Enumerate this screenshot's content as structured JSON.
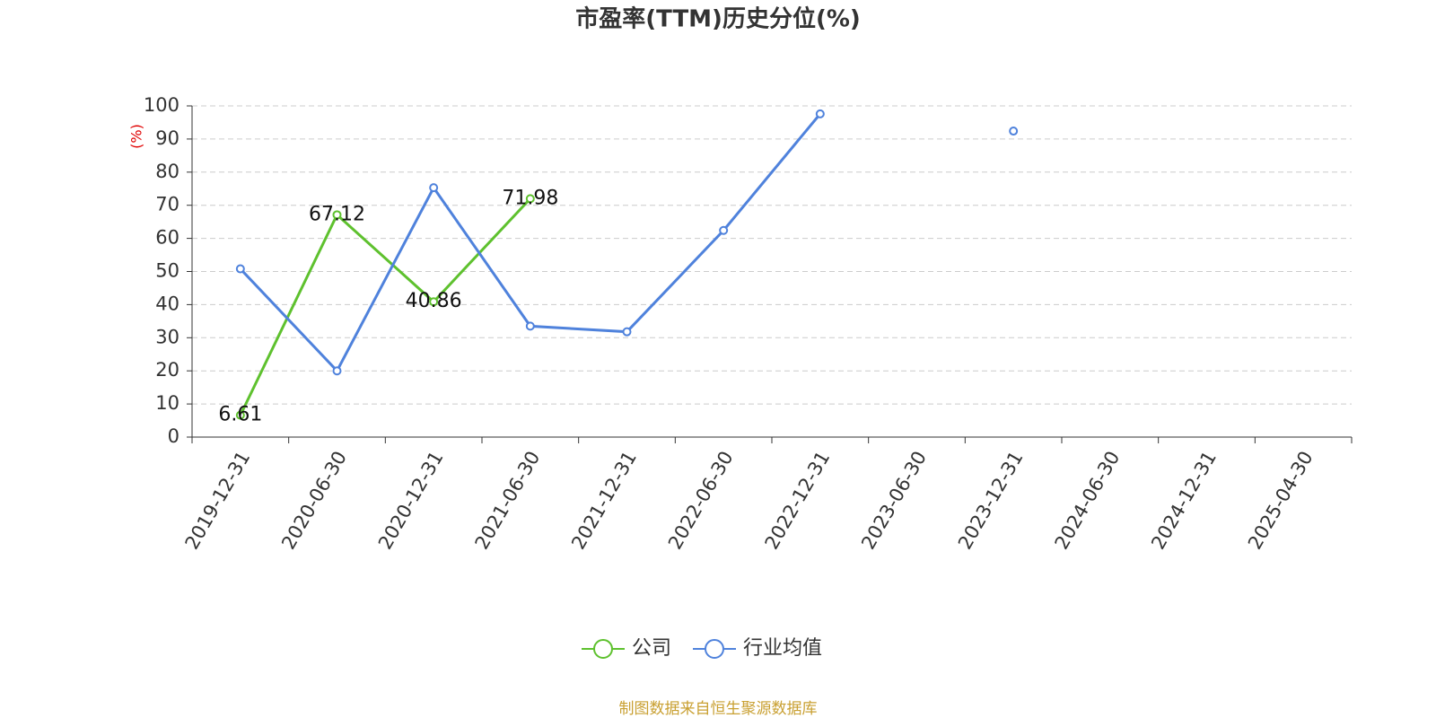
{
  "chart_data": {
    "type": "line",
    "title": "市盈率(TTM)历史分位(%)",
    "y_label": "(%)",
    "source": "制图数据来自恒生聚源数据库",
    "categories": [
      "2019-12-31",
      "2020-06-30",
      "2020-12-31",
      "2021-06-30",
      "2021-12-31",
      "2022-06-30",
      "2022-12-31",
      "2023-06-30",
      "2023-12-31",
      "2024-06-30",
      "2024-12-31",
      "2025-04-30"
    ],
    "series": [
      {
        "name": "公司",
        "color": "#5ec12e",
        "values": [
          6.61,
          67.12,
          40.86,
          71.98,
          null,
          null,
          null,
          null,
          null,
          null,
          null,
          null
        ],
        "show_labels": true
      },
      {
        "name": "行业均值",
        "color": "#4f82dc",
        "values": [
          50.8,
          20.0,
          75.3,
          33.5,
          31.8,
          62.4,
          97.6,
          null,
          92.4,
          null,
          null,
          null
        ],
        "show_labels": false
      }
    ],
    "ylim": [
      0,
      100
    ],
    "yticks": [
      0,
      10,
      20,
      30,
      40,
      50,
      60,
      70,
      80,
      90,
      100
    ],
    "grid": true,
    "legend": "bottom"
  }
}
